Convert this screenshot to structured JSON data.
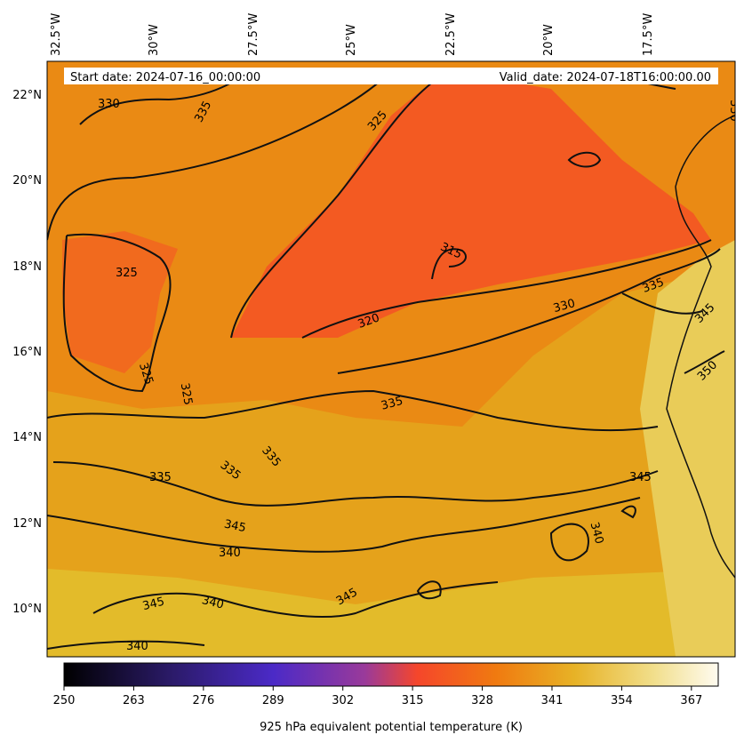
{
  "header": {
    "start_date": "Start date: 2024-07-16_00:00:00",
    "valid_date": "Valid_date: 2024-07-18T16:00:00.00"
  },
  "map": {
    "lon_ticks": [
      "32.5°W",
      "30°W",
      "27.5°W",
      "25°W",
      "22.5°W",
      "20°W",
      "17.5°W"
    ],
    "lat_ticks": [
      "22°N",
      "20°N",
      "18°N",
      "16°N",
      "14°N",
      "12°N",
      "10°N"
    ],
    "contour_labels": [
      "330",
      "335",
      "325",
      "315",
      "330",
      "335",
      "345",
      "350",
      "330",
      "325",
      "320",
      "325",
      "325",
      "335",
      "335",
      "335",
      "335",
      "345",
      "345",
      "340",
      "340",
      "345",
      "345",
      "340"
    ]
  },
  "colorbar": {
    "label": "925 hPa equivalent potential temperature (K)",
    "ticks": [
      "250",
      "263",
      "276",
      "289",
      "302",
      "315",
      "328",
      "341",
      "354",
      "367"
    ],
    "range": [
      250,
      372
    ]
  },
  "colors": {
    "very_cold": "#000000",
    "cold": "#4b2ac7",
    "mid": "#f5462b",
    "warm": "#e9a21a",
    "hot": "#fffbf0"
  }
}
